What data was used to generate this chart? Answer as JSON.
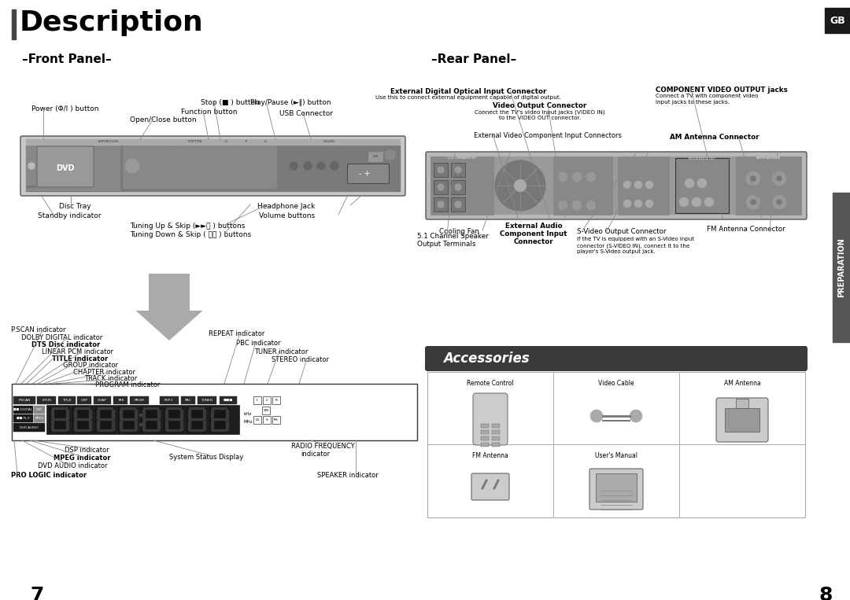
{
  "bg_color": "#ffffff",
  "title": "Description",
  "front_panel_title": "–Front Panel–",
  "rear_panel_title": "–Rear Panel–",
  "accessories_title": "Accessories",
  "page_left": "7",
  "page_right": "8",
  "tab_text": "GB",
  "tab_side_text": "PREPARATION",
  "tab_color": "#1a1a1a",
  "tab_text_color": "#ffffff",
  "title_bar_color": "#444444",
  "gray_device": "#b0b0b0",
  "dark_device": "#707070",
  "darker": "#3a3a3a",
  "leader_color": "#888888",
  "arrow_color": "#aaaaaa"
}
